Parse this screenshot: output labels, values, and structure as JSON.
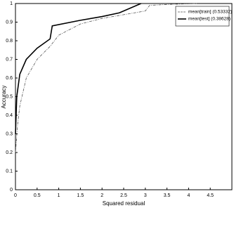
{
  "chart_data": {
    "type": "line",
    "x_label": "Squared residual",
    "y_label": "Accuracy",
    "xlim": [
      0,
      5
    ],
    "ylim": [
      0,
      1
    ],
    "xticks": [
      0,
      0.5,
      1,
      1.5,
      2,
      2.5,
      3,
      3.5,
      4,
      4.5
    ],
    "yticks": [
      0,
      0.1,
      0.2,
      0.3,
      0.4,
      0.5,
      0.6,
      0.7,
      0.8,
      0.9,
      1
    ],
    "grid": false,
    "legend": "upper right",
    "series": [
      {
        "name": "mean[train] (0.53332)",
        "color": "#555555",
        "style": "dashed",
        "x": [
          0,
          0.05,
          0.1,
          0.25,
          0.5,
          0.8,
          1,
          1.5,
          2,
          2.5,
          3,
          3.1,
          3.5,
          4.2
        ],
        "values": [
          0.2,
          0.35,
          0.45,
          0.6,
          0.7,
          0.77,
          0.83,
          0.89,
          0.92,
          0.94,
          0.96,
          0.99,
          0.995,
          1
        ]
      },
      {
        "name": "mean[test] (0.38628)",
        "color": "#000000",
        "style": "solid",
        "x": [
          0,
          0.03,
          0.1,
          0.25,
          0.5,
          0.8,
          0.85,
          1.5,
          2,
          2.4,
          2.9
        ],
        "values": [
          0.3,
          0.5,
          0.62,
          0.7,
          0.76,
          0.81,
          0.88,
          0.91,
          0.93,
          0.95,
          1
        ]
      }
    ]
  }
}
